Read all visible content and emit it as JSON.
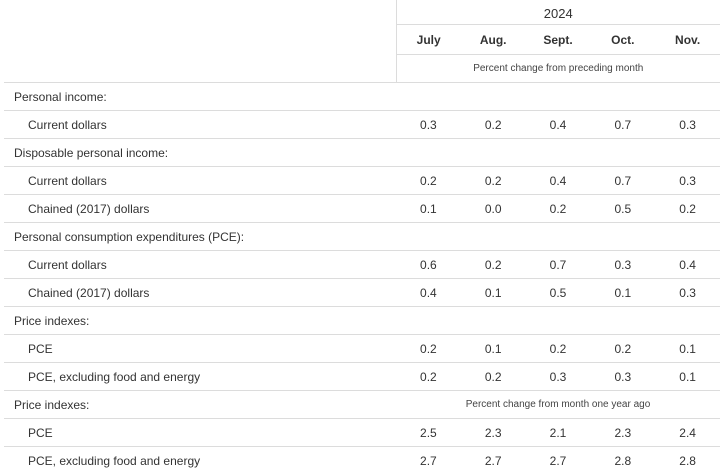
{
  "header": {
    "year": "2024",
    "months": [
      "July",
      "Aug.",
      "Sept.",
      "Oct.",
      "Nov."
    ],
    "unit_monthly": "Percent change from preceding month",
    "unit_yearly": "Percent change from month one year ago"
  },
  "rows": [
    {
      "label": "Personal income:",
      "indent": false,
      "values": []
    },
    {
      "label": "Current dollars",
      "indent": true,
      "values": [
        "0.3",
        "0.2",
        "0.4",
        "0.7",
        "0.3"
      ]
    },
    {
      "label": "Disposable personal income:",
      "indent": false,
      "values": []
    },
    {
      "label": "Current dollars",
      "indent": true,
      "values": [
        "0.2",
        "0.2",
        "0.4",
        "0.7",
        "0.3"
      ]
    },
    {
      "label": "Chained (2017) dollars",
      "indent": true,
      "values": [
        "0.1",
        "0.0",
        "0.2",
        "0.5",
        "0.2"
      ]
    },
    {
      "label": "Personal consumption expenditures (PCE):",
      "indent": false,
      "values": []
    },
    {
      "label": "Current dollars",
      "indent": true,
      "values": [
        "0.6",
        "0.2",
        "0.7",
        "0.3",
        "0.4"
      ]
    },
    {
      "label": "Chained (2017) dollars",
      "indent": true,
      "values": [
        "0.4",
        "0.1",
        "0.5",
        "0.1",
        "0.3"
      ]
    },
    {
      "label": "Price indexes:",
      "indent": false,
      "values": []
    },
    {
      "label": "PCE",
      "indent": true,
      "values": [
        "0.2",
        "0.1",
        "0.2",
        "0.2",
        "0.1"
      ]
    },
    {
      "label": "PCE, excluding food and energy",
      "indent": true,
      "values": [
        "0.2",
        "0.2",
        "0.3",
        "0.3",
        "0.1"
      ]
    },
    {
      "label": "Price indexes:",
      "indent": false,
      "values": [],
      "unit": "yearly"
    },
    {
      "label": "PCE",
      "indent": true,
      "values": [
        "2.5",
        "2.3",
        "2.1",
        "2.3",
        "2.4"
      ]
    },
    {
      "label": "PCE, excluding food and energy",
      "indent": true,
      "values": [
        "2.7",
        "2.7",
        "2.7",
        "2.8",
        "2.8"
      ]
    }
  ]
}
